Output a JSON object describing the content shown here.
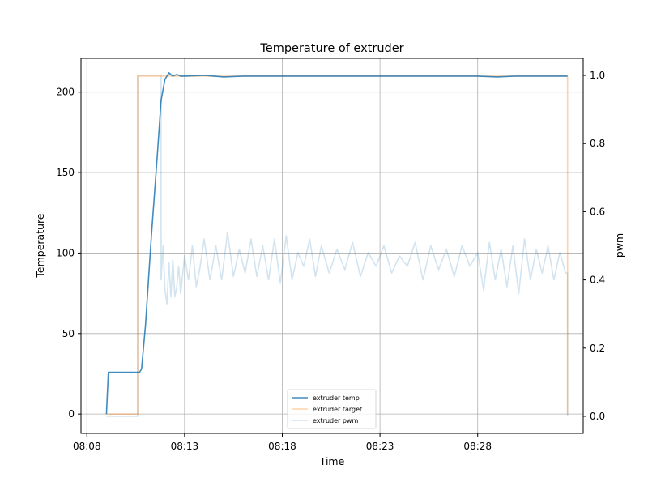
{
  "chart_data": {
    "type": "line",
    "title": "Temperature of extruder",
    "xlabel": "Time",
    "ylabel_left": "Temperature",
    "ylabel_right": "pwm",
    "x_unit": "time HH:MM",
    "xlim": [
      "08:07.7",
      "08:33.4"
    ],
    "ylim_left": [
      -12,
      221
    ],
    "ylim_right": [
      -0.05,
      1.05
    ],
    "x_ticks": [
      "08:08",
      "08:13",
      "08:18",
      "08:23",
      "08:28"
    ],
    "y_ticks_left": [
      0,
      50,
      100,
      150,
      200
    ],
    "y_ticks_right": [
      "0.0",
      "0.2",
      "0.4",
      "0.6",
      "0.8",
      "1.0"
    ],
    "grid": true,
    "legend_position": "lower-center",
    "legend": [
      "extruder temp",
      "extruder target",
      "extruder pwm"
    ],
    "colors": {
      "temp": "#1f77b4",
      "target": "#ff7f0e",
      "pwm": "#1f77b4",
      "grid": "#b0b0b0"
    },
    "series": [
      {
        "name": "extruder temp",
        "axis": "left",
        "x": [
          "08:09.0",
          "08:09.1",
          "08:10.0",
          "08:10.7",
          "08:10.8",
          "08:11.0",
          "08:11.3",
          "08:11.6",
          "08:11.8",
          "08:12.0",
          "08:12.2",
          "08:12.4",
          "08:12.6",
          "08:12.8",
          "08:13.0",
          "08:14.0",
          "08:15.0",
          "08:16.0",
          "08:17.0",
          "08:18.0",
          "08:20.0",
          "08:22.0",
          "08:24.0",
          "08:26.0",
          "08:28.0",
          "08:29.0",
          "08:30.0",
          "08:31.0",
          "08:32.0",
          "08:32.6"
        ],
        "values": [
          0,
          26,
          26,
          26,
          28,
          55,
          110,
          160,
          195,
          208,
          212,
          210,
          211,
          210,
          210,
          210.5,
          209.5,
          210,
          210,
          210,
          210,
          210,
          210,
          210,
          210,
          209.5,
          210,
          210,
          210,
          210
        ]
      },
      {
        "name": "extruder target",
        "axis": "left",
        "x": [
          "08:09.0",
          "08:10.6",
          "08:10.6",
          "08:32.6",
          "08:32.6"
        ],
        "values": [
          0,
          0,
          210,
          210,
          0
        ]
      },
      {
        "name": "extruder pwm",
        "axis": "right",
        "x": [
          "08:09.0",
          "08:10.6",
          "08:10.6",
          "08:11.8",
          "08:11.8",
          "08:11.9",
          "08:12.0",
          "08:12.1",
          "08:12.2",
          "08:12.3",
          "08:12.4",
          "08:12.5",
          "08:12.6",
          "08:12.7",
          "08:12.8",
          "08:13.0",
          "08:13.2",
          "08:13.4",
          "08:13.6",
          "08:13.8",
          "08:14.0",
          "08:14.3",
          "08:14.6",
          "08:14.9",
          "08:15.2",
          "08:15.5",
          "08:15.8",
          "08:16.1",
          "08:16.4",
          "08:16.7",
          "08:17.0",
          "08:17.3",
          "08:17.6",
          "08:17.9",
          "08:18.2",
          "08:18.5",
          "08:18.8",
          "08:19.1",
          "08:19.4",
          "08:19.7",
          "08:20.0",
          "08:20.4",
          "08:20.8",
          "08:21.2",
          "08:21.6",
          "08:22.0",
          "08:22.4",
          "08:22.8",
          "08:23.2",
          "08:23.6",
          "08:24.0",
          "08:24.4",
          "08:24.8",
          "08:25.2",
          "08:25.6",
          "08:26.0",
          "08:26.4",
          "08:26.8",
          "08:27.2",
          "08:27.6",
          "08:28.0",
          "08:28.3",
          "08:28.6",
          "08:28.9",
          "08:29.2",
          "08:29.5",
          "08:29.8",
          "08:30.1",
          "08:30.4",
          "08:30.7",
          "08:31.0",
          "08:31.3",
          "08:31.6",
          "08:31.9",
          "08:32.2",
          "08:32.5",
          "08:32.6",
          "08:32.6"
        ],
        "values": [
          0,
          0,
          1.0,
          1.0,
          0.4,
          0.5,
          0.37,
          0.33,
          0.45,
          0.35,
          0.46,
          0.35,
          0.38,
          0.44,
          0.36,
          0.47,
          0.4,
          0.5,
          0.38,
          0.44,
          0.52,
          0.4,
          0.5,
          0.4,
          0.54,
          0.41,
          0.49,
          0.42,
          0.52,
          0.41,
          0.5,
          0.4,
          0.52,
          0.39,
          0.53,
          0.4,
          0.48,
          0.44,
          0.52,
          0.41,
          0.5,
          0.42,
          0.49,
          0.43,
          0.51,
          0.41,
          0.48,
          0.44,
          0.5,
          0.42,
          0.47,
          0.44,
          0.51,
          0.4,
          0.5,
          0.43,
          0.49,
          0.41,
          0.5,
          0.44,
          0.48,
          0.37,
          0.51,
          0.4,
          0.49,
          0.38,
          0.5,
          0.36,
          0.52,
          0.4,
          0.49,
          0.42,
          0.5,
          0.4,
          0.48,
          0.42,
          0.42,
          0
        ]
      }
    ]
  }
}
